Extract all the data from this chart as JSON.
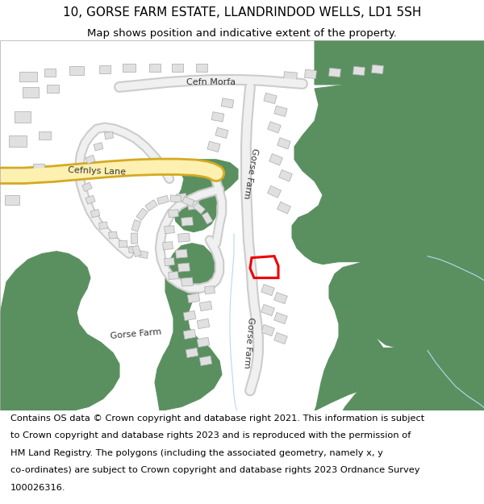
{
  "title": "10, GORSE FARM ESTATE, LLANDRINDOD WELLS, LD1 5SH",
  "subtitle": "Map shows position and indicative extent of the property.",
  "footer_lines": [
    "Contains OS data © Crown copyright and database right 2021. This information is subject",
    "to Crown copyright and database rights 2023 and is reproduced with the permission of",
    "HM Land Registry. The polygons (including the associated geometry, namely x, y",
    "co-ordinates) are subject to Crown copyright and database rights 2023 Ordnance Survey",
    "100026316."
  ],
  "bg": "#ffffff",
  "green": "#5a9060",
  "road_yellow_fill": "#fdf0b0",
  "road_yellow_border": "#d4aa20",
  "road_grey_fill": "#f0f0f0",
  "road_grey_border": "#cccccc",
  "building_fill": "#e0e0e0",
  "building_edge": "#aaaaaa",
  "water_color": "#b8d8f0",
  "red_color": "#ee0000",
  "title_fs": 11,
  "sub_fs": 9.5,
  "footer_fs": 8.2,
  "label_fs": 7.5
}
